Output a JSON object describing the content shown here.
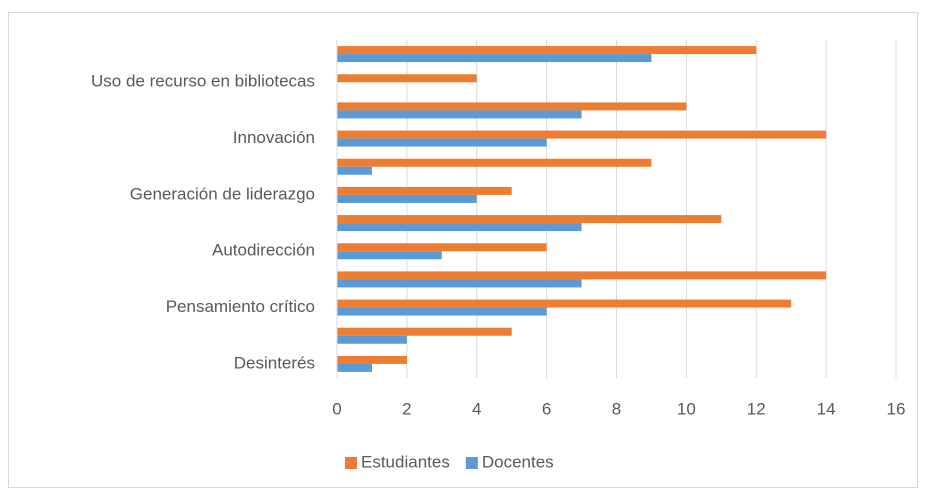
{
  "chart_data": {
    "type": "bar",
    "orientation": "horizontal",
    "categories": [
      "Desinterés",
      null,
      "Pensamiento crítico",
      null,
      "Autodirección",
      null,
      "Generación de liderazgo",
      null,
      "Innovación",
      null,
      "Uso de recurso en bibliotecas",
      null
    ],
    "series": [
      {
        "name": "Estudiantes",
        "color": "#ed7d31",
        "values": [
          2,
          5,
          13,
          14,
          6,
          11,
          5,
          9,
          14,
          10,
          4,
          12
        ]
      },
      {
        "name": "Docentes",
        "color": "#5b9bd5",
        "values": [
          1,
          2,
          6,
          7,
          3,
          7,
          4,
          1,
          6,
          7,
          0,
          9
        ]
      }
    ],
    "xlim": [
      0,
      16
    ],
    "xticks": [
      0,
      2,
      4,
      6,
      8,
      10,
      12,
      14,
      16
    ],
    "grid": true,
    "legend": "bottom"
  }
}
